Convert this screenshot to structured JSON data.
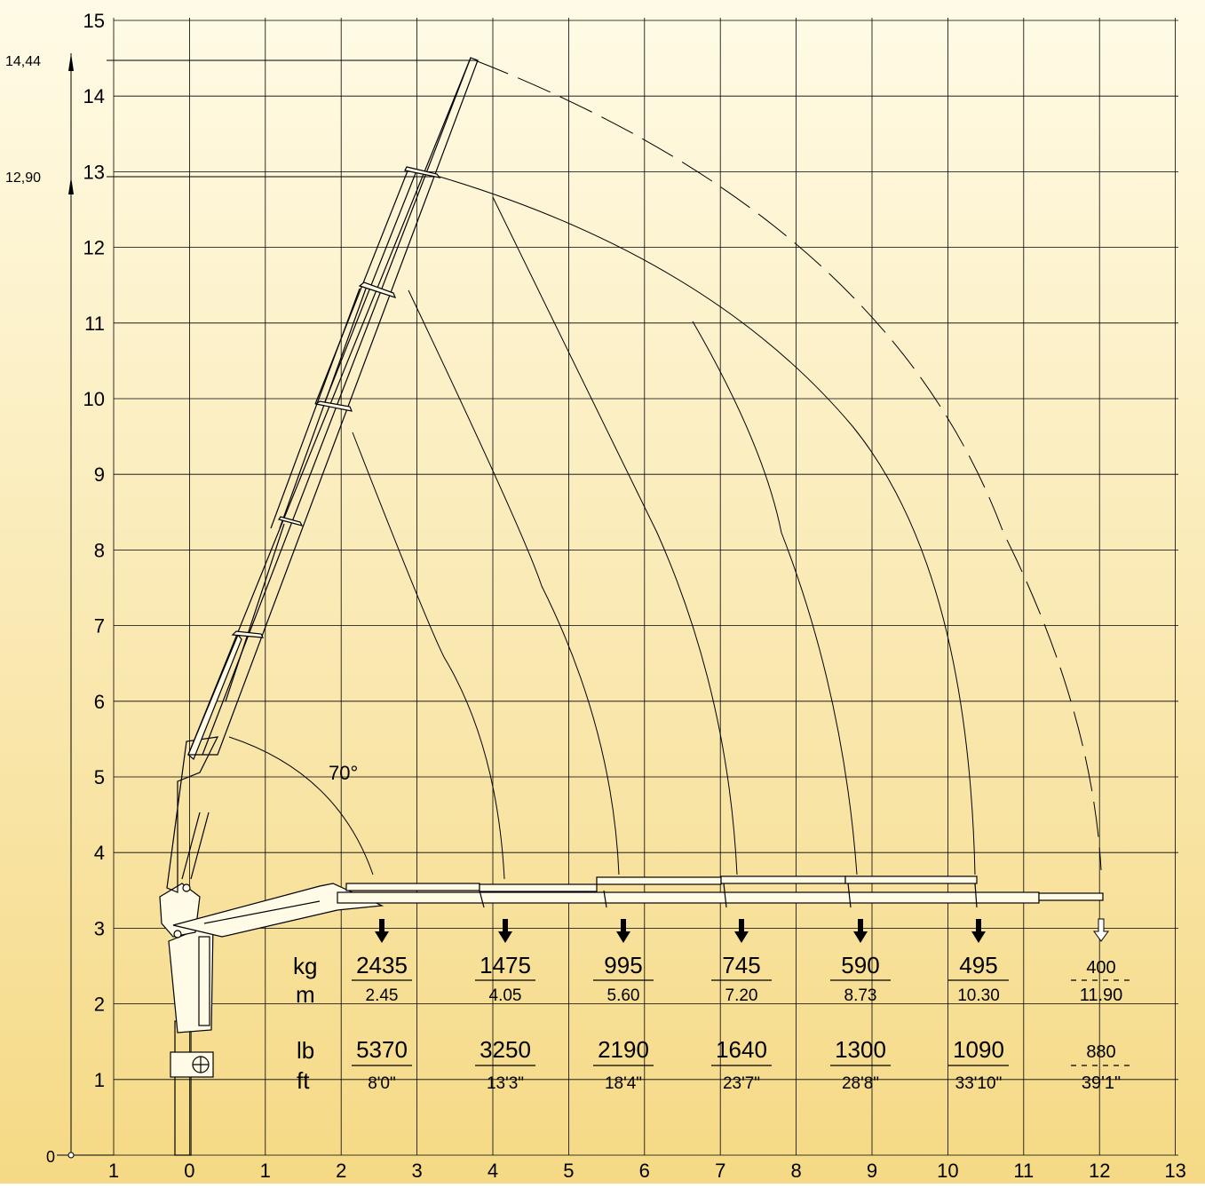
{
  "background": {
    "top_color": "#fffbe6",
    "bottom_color": "#f5d985",
    "grid_color": "#000000"
  },
  "axes": {
    "x_ticks": [
      "1",
      "0",
      "1",
      "2",
      "3",
      "4",
      "5",
      "6",
      "7",
      "8",
      "9",
      "10",
      "11",
      "12",
      "13"
    ],
    "y_ticks": [
      "1",
      "2",
      "3",
      "4",
      "5",
      "6",
      "7",
      "8",
      "9",
      "10",
      "11",
      "12",
      "13",
      "14",
      "15"
    ],
    "origin_label": "0"
  },
  "heights": {
    "max_height": "14,44",
    "standard_height": "12,90"
  },
  "boom": {
    "angle_label": "70°"
  },
  "units": {
    "kg": "kg",
    "m": "m",
    "lb": "lb",
    "ft": "ft"
  },
  "loads": [
    {
      "kg": "2435",
      "m": "2.45",
      "lb": "5370",
      "ft": "8'0\"",
      "optional": false
    },
    {
      "kg": "1475",
      "m": "4.05",
      "lb": "3250",
      "ft": "13'3\"",
      "optional": false
    },
    {
      "kg": "995",
      "m": "5.60",
      "lb": "2190",
      "ft": "18'4\"",
      "optional": false
    },
    {
      "kg": "745",
      "m": "7.20",
      "lb": "1640",
      "ft": "23'7\"",
      "optional": false
    },
    {
      "kg": "590",
      "m": "8.73",
      "lb": "1300",
      "ft": "28'8\"",
      "optional": false
    },
    {
      "kg": "495",
      "m": "10.30",
      "lb": "1090",
      "ft": "33'10\"",
      "optional": false
    },
    {
      "kg": "400",
      "m": "11.90",
      "lb": "880",
      "ft": "39'1\"",
      "optional": true
    }
  ]
}
